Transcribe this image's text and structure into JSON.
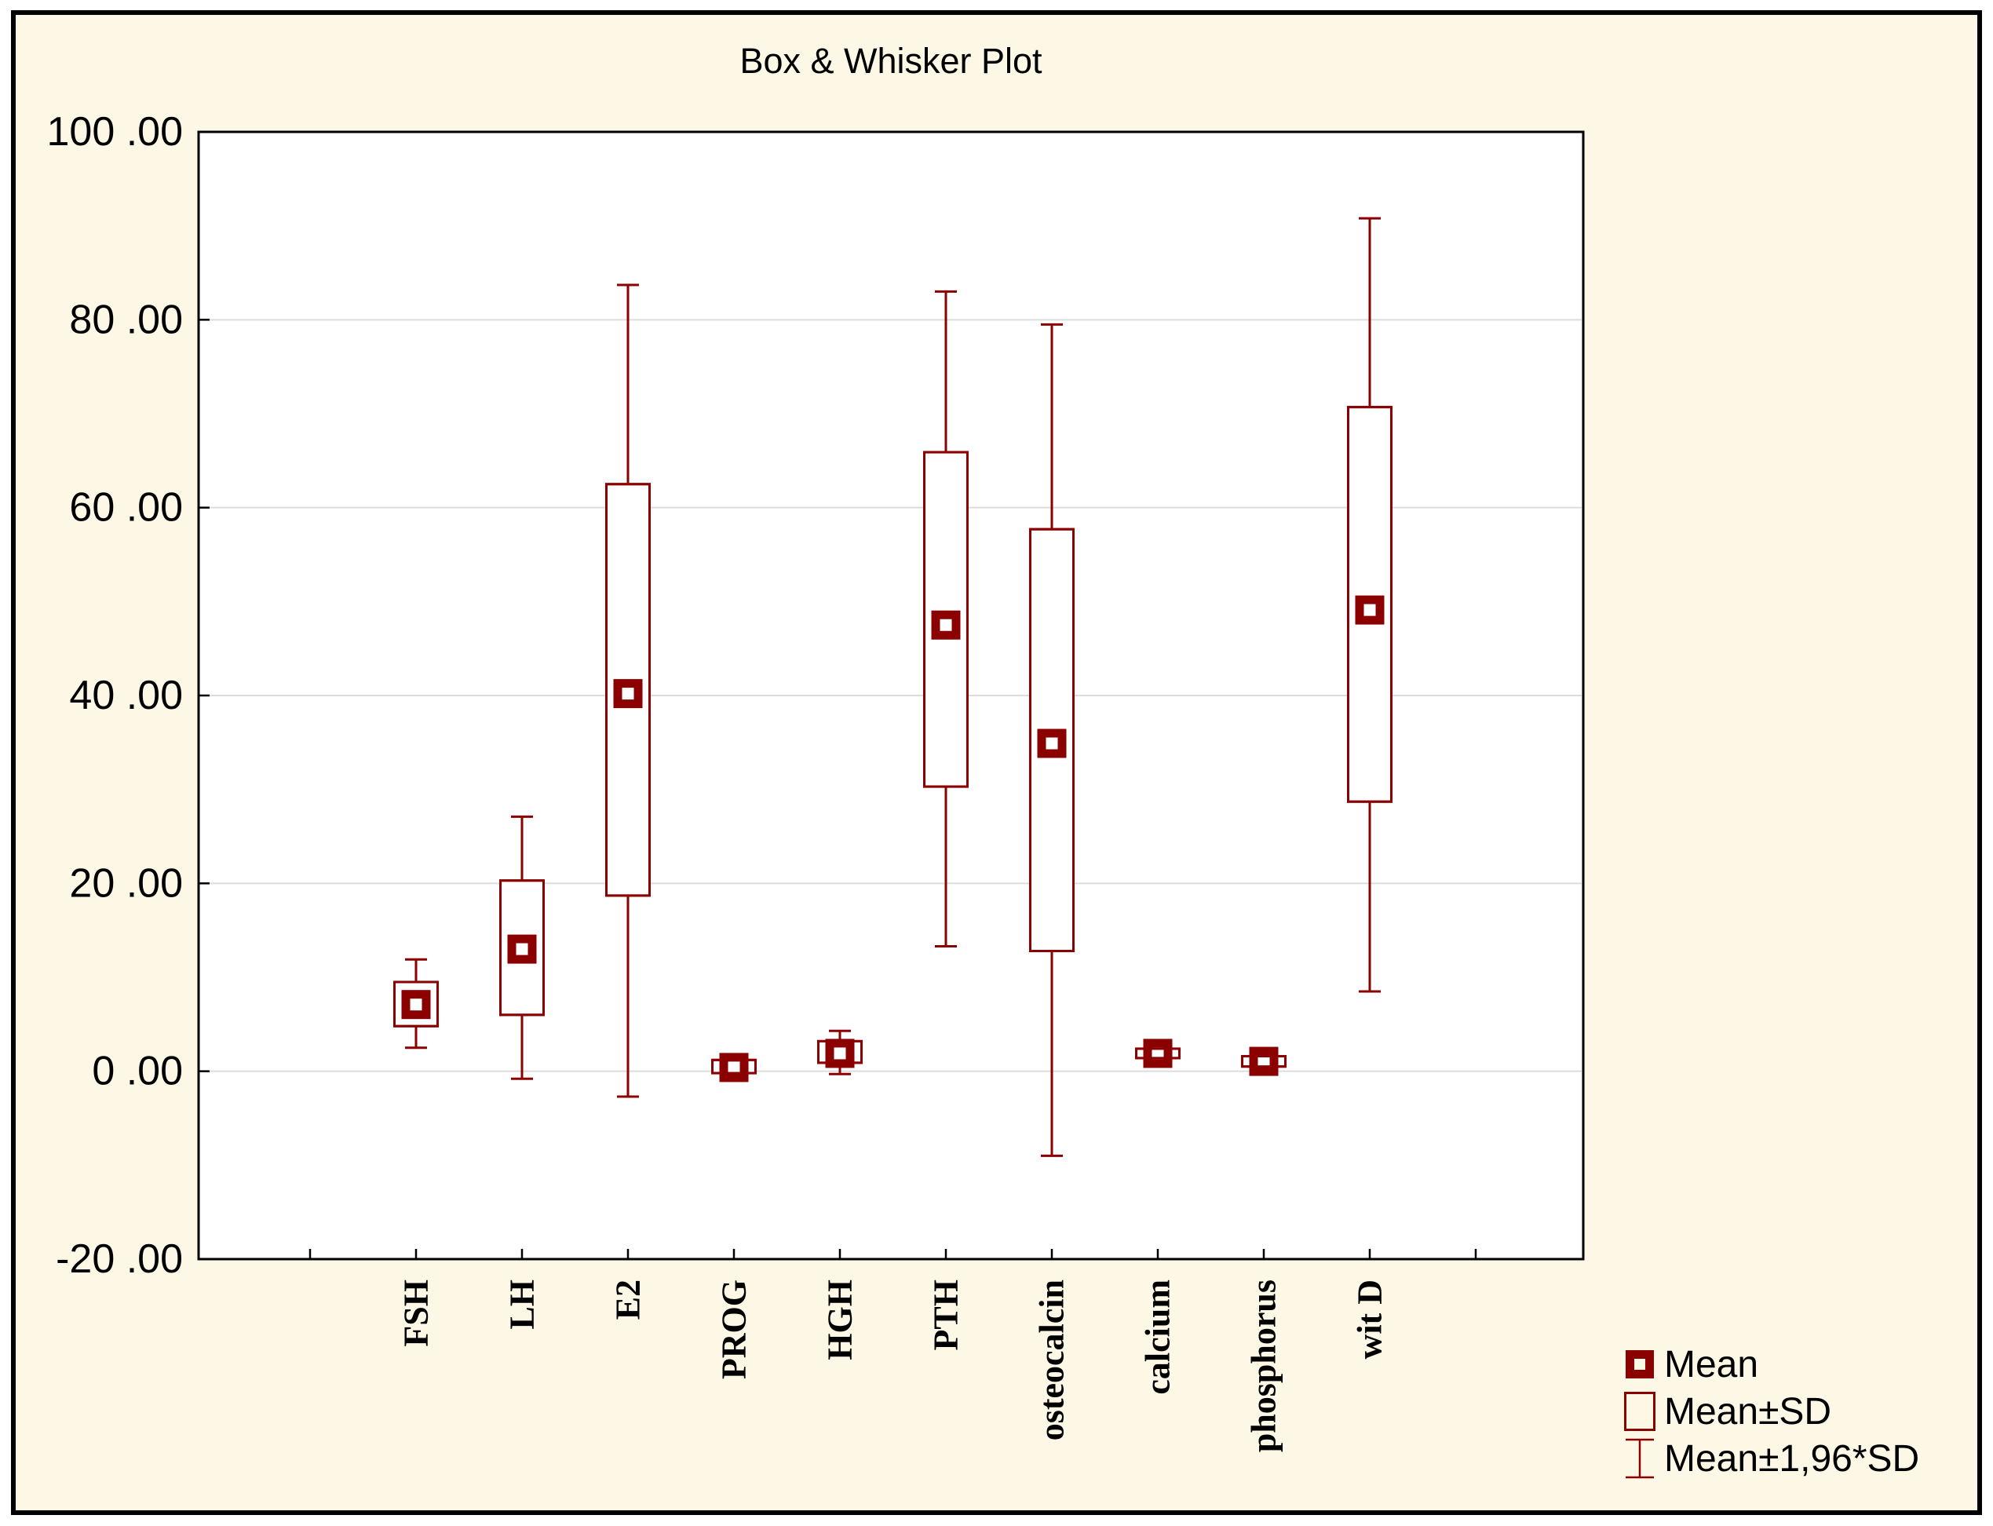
{
  "title": "Box & Whisker Plot",
  "legend": {
    "items": [
      {
        "label": "Mean",
        "symbol": "mean-square-icon"
      },
      {
        "label": "Mean±SD",
        "symbol": "sd-box-icon"
      },
      {
        "label": "Mean±1,96*SD",
        "symbol": "whisker-icon"
      }
    ]
  },
  "y_axis": {
    "ticks": [
      {
        "label": "100 .00",
        "value": 100
      },
      {
        "label": "80 .00",
        "value": 80
      },
      {
        "label": "60 .00",
        "value": 60
      },
      {
        "label": "40 .00",
        "value": 40
      },
      {
        "label": "20 .00",
        "value": 20
      },
      {
        "label": "0 .00",
        "value": 0
      },
      {
        "label": "-20 .00",
        "value": -20
      }
    ]
  },
  "chart_data": {
    "type": "box",
    "title": "Box & Whisker Plot",
    "categories": [
      "FSH",
      "LH",
      "E2",
      "PROG",
      "HGH",
      "PTH",
      "osteocalcin",
      "calcium",
      "phosphorus",
      "wit D"
    ],
    "series": [
      {
        "name": "FSH",
        "mean": 7.1,
        "box_low": 4.8,
        "box_high": 9.5,
        "whisker_low": 2.5,
        "whisker_high": 11.9
      },
      {
        "name": "LH",
        "mean": 13.0,
        "box_low": 6.0,
        "box_high": 20.3,
        "whisker_low": -0.8,
        "whisker_high": 27.1
      },
      {
        "name": "E2",
        "mean": 40.2,
        "box_low": 18.7,
        "box_high": 62.5,
        "whisker_low": -2.7,
        "whisker_high": 83.7
      },
      {
        "name": "PROG",
        "mean": 0.4,
        "box_low": -0.2,
        "box_high": 1.2,
        "whisker_low": -1.0,
        "whisker_high": 1.7
      },
      {
        "name": "HGH",
        "mean": 1.9,
        "box_low": 0.9,
        "box_high": 3.2,
        "whisker_low": -0.3,
        "whisker_high": 4.3
      },
      {
        "name": "PTH",
        "mean": 47.5,
        "box_low": 30.3,
        "box_high": 65.9,
        "whisker_low": 13.3,
        "whisker_high": 83.0
      },
      {
        "name": "osteocalcin",
        "mean": 34.9,
        "box_low": 12.8,
        "box_high": 57.7,
        "whisker_low": -9.0,
        "whisker_high": 79.5
      },
      {
        "name": "calcium",
        "mean": 1.9,
        "box_low": 1.4,
        "box_high": 2.4,
        "whisker_low": 0.9,
        "whisker_high": 2.9
      },
      {
        "name": "phosphorus",
        "mean": 1.05,
        "box_low": 0.5,
        "box_high": 1.6,
        "whisker_low": 0.1,
        "whisker_high": 2.1
      },
      {
        "name": "wit D",
        "mean": 49.1,
        "box_low": 28.7,
        "box_high": 70.7,
        "whisker_low": 8.5,
        "whisker_high": 90.8
      }
    ],
    "ylim": [
      -20,
      100
    ],
    "grid_values": [
      80,
      60,
      40,
      20,
      0
    ],
    "grid_on": true,
    "legend_position": "bottom-right",
    "legend_entries": [
      "Mean",
      "Mean±SD",
      "Mean±1,96*SD"
    ],
    "colors": {
      "series_color": "#8B0000",
      "grid_color": "#DCDCDC",
      "background": "#FDF7E6",
      "plot_background": "#FFFFFF",
      "frame_color": "#000000",
      "text_color": "#000000"
    }
  }
}
